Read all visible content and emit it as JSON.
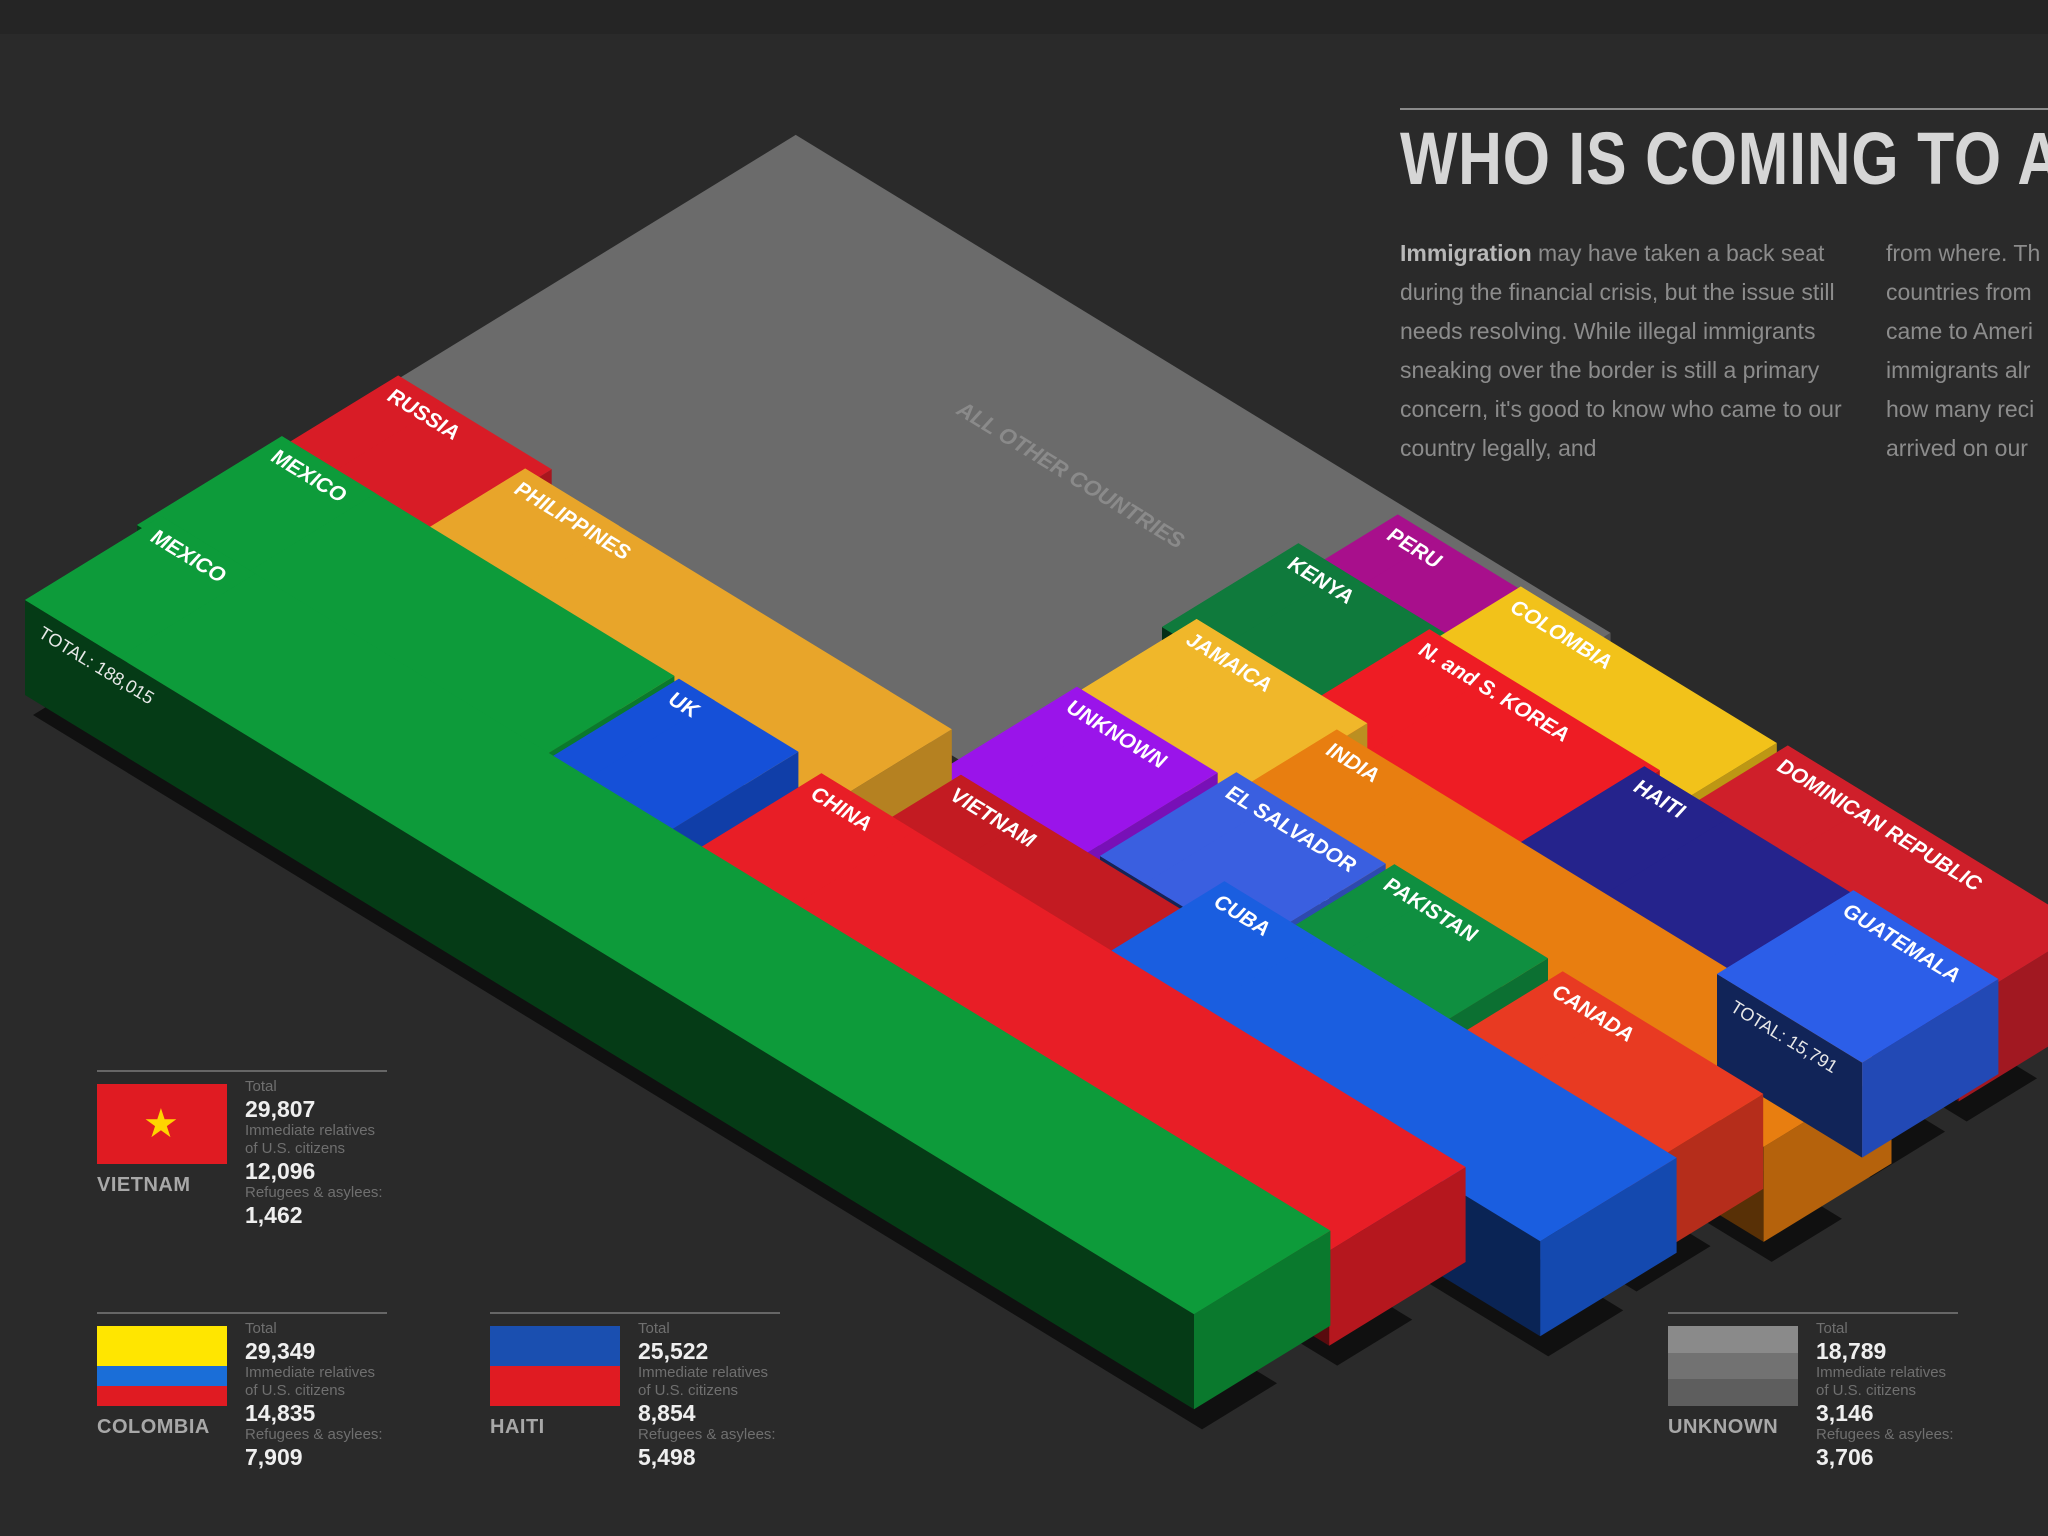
{
  "header": {
    "title": "WHO IS COMING TO A",
    "intro_bold": "Immigration",
    "intro_col1": " may have taken a back seat during the financial crisis, but the issue still needs resolving. While illegal immigrants sneaking over the border is still a primary concern, it's good to know who came to our country legally, and",
    "intro_col2_lines": [
      "from where. Th",
      "countries from",
      "came to Ameri",
      "immigrants alr",
      "how many reci",
      "arrived on our"
    ]
  },
  "chart_data": {
    "type": "bar",
    "style": "isometric 3D bars",
    "total_prefix": "TOTAL:",
    "bars": [
      {
        "label": "ALL OTHER COUNTRIES",
        "total": "384,801",
        "color": "#6b6b6b"
      },
      {
        "label": "RUSSIA",
        "total": "15,179",
        "color": "#d81c26"
      },
      {
        "label": "PHILIPPINES",
        "total": "52,391",
        "color": "#e8a52a"
      },
      {
        "label": "MEXICO",
        "total": "",
        "color": "#0d9b3a"
      },
      {
        "label": "MEXICO",
        "total": "188,015",
        "color": "#0d9b3a"
      },
      {
        "label": "UK",
        "total": "16,189",
        "color": "#1550d8"
      },
      {
        "label": "VIETNAM",
        "total": "29,807",
        "color": "#c31b22"
      },
      {
        "label": "CHINA",
        "total": "75,410",
        "color": "#e81e26"
      },
      {
        "label": "UNKNOWN",
        "total": "18,789",
        "color": "#9a14ea"
      },
      {
        "label": "CUBA",
        "total": "48,057",
        "color": "#1a5ee0"
      },
      {
        "label": "JAMAICA",
        "total": "18,077",
        "color": "#f0b72a"
      },
      {
        "label": "EL SALVADOR",
        "total": "18,837",
        "color": "#3a5fe0"
      },
      {
        "label": "PAKISTAN",
        "total": "20,023",
        "color": "#0f8f40"
      },
      {
        "label": "INDIA",
        "total": "59,728",
        "color": "#e87e10"
      },
      {
        "label": "CANADA",
        "total": "22,366",
        "color": "#e83a22"
      },
      {
        "label": "KENYA",
        "total": "15,866",
        "color": "#0f7a3c"
      },
      {
        "label": "N. and S. KOREA",
        "total": "26,155",
        "color": "#ee1c24"
      },
      {
        "label": "HAITI",
        "total": "25,522",
        "color": "#25238c"
      },
      {
        "label": "GUATEMALA",
        "total": "15,791",
        "color": "#2c5ee8"
      },
      {
        "label": "PERU",
        "total": "14,873",
        "color": "#a80f8c"
      },
      {
        "label": "COLOMBIA",
        "total": "29,349",
        "color": "#f2c21a"
      },
      {
        "label": "DOMINICAN REPUBLIC",
        "total": "31,801",
        "color": "#cf1f2a"
      }
    ]
  },
  "details": [
    {
      "country": "VIETNAM",
      "total_label": "Total",
      "total": "29,807",
      "rel_label_1": "Immediate relatives",
      "rel_label_2": "of U.S. citizens",
      "relatives": "12,096",
      "ref_label": "Refugees & asylees:",
      "refugees": "1,462",
      "flag": "vietnam",
      "colors": {
        "field": "#e01b22",
        "star": "#ffd400"
      }
    },
    {
      "country": "COLOMBIA",
      "total_label": "Total",
      "total": "29,349",
      "rel_label_1": "Immediate relatives",
      "rel_label_2": "of U.S. citizens",
      "relatives": "14,835",
      "ref_label": "Refugees & asylees:",
      "refugees": "7,909",
      "flag": "colombia",
      "colors": {
        "yellow": "#ffe600",
        "blue": "#1a6ed8",
        "red": "#e01b22"
      }
    },
    {
      "country": "HAITI",
      "total_label": "Total",
      "total": "25,522",
      "rel_label_1": "Immediate relatives",
      "rel_label_2": "of U.S. citizens",
      "relatives": "8,854",
      "ref_label": "Refugees & asylees:",
      "refugees": "5,498",
      "flag": "haiti",
      "colors": {
        "blue": "#1a4fb0",
        "red": "#e01b22"
      }
    },
    {
      "country": "UNKNOWN",
      "total_label": "Total",
      "total": "18,789",
      "rel_label_1": "Immediate relatives",
      "rel_label_2": "of U.S. citizens",
      "relatives": "3,146",
      "ref_label": "Refugees & asylees:",
      "refugees": "3,706",
      "flag": "unknown",
      "colors": {
        "a": "#8a8a8a",
        "b": "#727272",
        "c": "#5e5e5e"
      }
    }
  ]
}
